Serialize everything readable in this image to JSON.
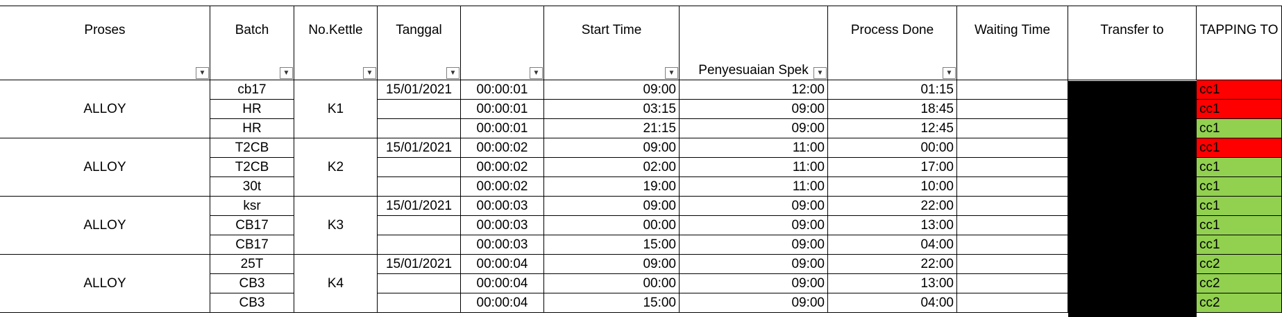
{
  "headers": {
    "proses": "Proses",
    "batch": "Batch",
    "kettle": "No.Kettle",
    "tanggal": "Tanggal",
    "blank": "",
    "start_time": "Start Time",
    "penyesuaian": "Penyesuaian Spek",
    "process_done": "Process Done",
    "waiting_time": "Waiting Time",
    "transfer_to": "Transfer to",
    "tapping_to": "TAPPING TO"
  },
  "groups": [
    {
      "proses": "ALLOY",
      "kettle": "K1",
      "tanggal": "15/01/2021"
    },
    {
      "proses": "ALLOY",
      "kettle": "K2",
      "tanggal": "15/01/2021"
    },
    {
      "proses": "ALLOY",
      "kettle": "K3",
      "tanggal": "15/01/2021"
    },
    {
      "proses": "ALLOY",
      "kettle": "K4",
      "tanggal": "15/01/2021"
    }
  ],
  "rows": [
    {
      "batch": "cb17",
      "dur": "00:00:01",
      "start": "09:00",
      "spek": "12:00",
      "done": "01:15",
      "tap": "cc1",
      "tap_color": "#ff0000"
    },
    {
      "batch": "HR",
      "dur": "00:00:01",
      "start": "03:15",
      "spek": "09:00",
      "done": "18:45",
      "tap": "cc1",
      "tap_color": "#ff0000"
    },
    {
      "batch": "HR",
      "dur": "00:00:01",
      "start": "21:15",
      "spek": "09:00",
      "done": "12:45",
      "tap": "cc1",
      "tap_color": "#92d050"
    },
    {
      "batch": "T2CB",
      "dur": "00:00:02",
      "start": "09:00",
      "spek": "11:00",
      "done": "00:00",
      "tap": "cc1",
      "tap_color": "#ff0000"
    },
    {
      "batch": "T2CB",
      "dur": "00:00:02",
      "start": "02:00",
      "spek": "11:00",
      "done": "17:00",
      "tap": "cc1",
      "tap_color": "#92d050"
    },
    {
      "batch": "30t",
      "dur": "00:00:02",
      "start": "19:00",
      "spek": "11:00",
      "done": "10:00",
      "tap": "cc1",
      "tap_color": "#92d050"
    },
    {
      "batch": "ksr",
      "dur": "00:00:03",
      "start": "09:00",
      "spek": "09:00",
      "done": "22:00",
      "tap": "cc1",
      "tap_color": "#92d050"
    },
    {
      "batch": "CB17",
      "dur": "00:00:03",
      "start": "00:00",
      "spek": "09:00",
      "done": "13:00",
      "tap": "cc1",
      "tap_color": "#92d050"
    },
    {
      "batch": "CB17",
      "dur": "00:00:03",
      "start": "15:00",
      "spek": "09:00",
      "done": "04:00",
      "tap": "cc1",
      "tap_color": "#92d050"
    },
    {
      "batch": "25T",
      "dur": "00:00:04",
      "start": "09:00",
      "spek": "09:00",
      "done": "22:00",
      "tap": "cc2",
      "tap_color": "#92d050"
    },
    {
      "batch": "CB3",
      "dur": "00:00:04",
      "start": "00:00",
      "spek": "09:00",
      "done": "13:00",
      "tap": "cc2",
      "tap_color": "#92d050"
    },
    {
      "batch": "CB3",
      "dur": "00:00:04",
      "start": "15:00",
      "spek": "09:00",
      "done": "04:00",
      "tap": "cc2",
      "tap_color": "#92d050"
    }
  ],
  "transfer_block_color": "#000000",
  "filter_icon": "dropdown-arrow-icon"
}
